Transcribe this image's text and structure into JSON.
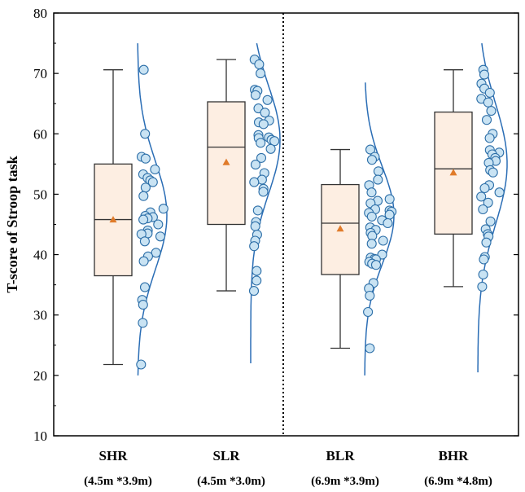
{
  "chart_data": {
    "type": "box",
    "title": "",
    "ylabel": "T-score of Stroop task",
    "xlabel": "",
    "ylim": [
      10,
      80
    ],
    "yticks": [
      10,
      20,
      30,
      40,
      50,
      60,
      70,
      80
    ],
    "categories": [
      "SHR",
      "SLR",
      "BLR",
      "BHR"
    ],
    "subtitles": [
      "(4.5m *3.9m)",
      "(4.5m *3.0m)",
      "(6.9m *3.9m)",
      "(6.9m *4.8m)"
    ],
    "divider_after_category": 1,
    "colors": {
      "box_fill": "#fdeee2",
      "box_stroke": "#333333",
      "mean_marker": "#e07b2a",
      "point_fill": "#c9e3f3",
      "point_stroke": "#2d6fa8",
      "density_line": "#2a6db5"
    },
    "boxes": [
      {
        "name": "SHR",
        "whisker_low": 21.8,
        "q1": 36.5,
        "median": 45.8,
        "q3": 55.0,
        "whisker_high": 70.6,
        "mean": 45.8,
        "points": [
          70.6,
          60.0,
          56.2,
          55.9,
          54.1,
          53.3,
          52.7,
          52.3,
          52.0,
          51.1,
          49.7,
          47.6,
          47.0,
          46.4,
          46.2,
          46.0,
          45.8,
          45.0,
          44.0,
          43.5,
          43.4,
          43.0,
          42.2,
          40.3,
          39.7,
          38.9,
          34.6,
          32.5,
          31.7,
          28.7,
          21.8
        ],
        "density": {
          "y_min": 20,
          "y_max": 75,
          "peak_y": 46.5,
          "spread": 9
        }
      },
      {
        "name": "SLR",
        "whisker_low": 34.0,
        "q1": 45.0,
        "median": 57.8,
        "q3": 65.3,
        "whisker_high": 72.3,
        "mean": 55.3,
        "points": [
          72.3,
          71.5,
          70.0,
          67.3,
          67.1,
          66.4,
          65.6,
          64.2,
          63.5,
          62.2,
          61.9,
          61.6,
          59.8,
          59.4,
          59.3,
          59.0,
          58.8,
          58.5,
          57.5,
          56.0,
          54.9,
          53.5,
          52.4,
          52.0,
          50.9,
          50.4,
          47.3,
          45.4,
          44.7,
          43.3,
          42.3,
          41.4,
          37.3,
          35.7,
          34.0
        ],
        "density": {
          "y_min": 22,
          "y_max": 75,
          "peak_y": 59,
          "spread": 9
        }
      },
      {
        "name": "BLR",
        "whisker_low": 24.5,
        "q1": 36.7,
        "median": 45.2,
        "q3": 51.6,
        "whisker_high": 57.4,
        "mean": 44.3,
        "points": [
          57.4,
          56.2,
          55.7,
          53.8,
          52.4,
          51.5,
          50.3,
          49.2,
          48.9,
          48.5,
          47.5,
          47.3,
          47.1,
          46.9,
          46.6,
          46.3,
          45.7,
          45.2,
          44.5,
          44.1,
          43.6,
          43.1,
          42.3,
          41.8,
          40.0,
          39.5,
          39.3,
          39.2,
          38.8,
          38.5,
          38.3,
          35.3,
          34.4,
          33.2,
          30.5,
          24.5
        ],
        "density": {
          "y_min": 20,
          "y_max": 68.5,
          "peak_y": 46.5,
          "spread": 8
        }
      },
      {
        "name": "BHR",
        "whisker_low": 34.7,
        "q1": 43.4,
        "median": 54.2,
        "q3": 63.6,
        "whisker_high": 70.6,
        "mean": 53.6,
        "points": [
          70.6,
          69.8,
          68.3,
          67.5,
          66.8,
          65.8,
          65.2,
          63.8,
          62.3,
          60.0,
          59.3,
          57.3,
          56.9,
          56.6,
          56.0,
          55.5,
          55.2,
          54.0,
          53.6,
          51.5,
          51.0,
          50.3,
          49.6,
          48.6,
          47.5,
          45.5,
          44.2,
          43.4,
          43.0,
          42.0,
          39.6,
          39.2,
          36.7,
          34.7
        ],
        "density": {
          "y_min": 20.5,
          "y_max": 75,
          "peak_y": 55,
          "spread": 10
        }
      }
    ]
  }
}
